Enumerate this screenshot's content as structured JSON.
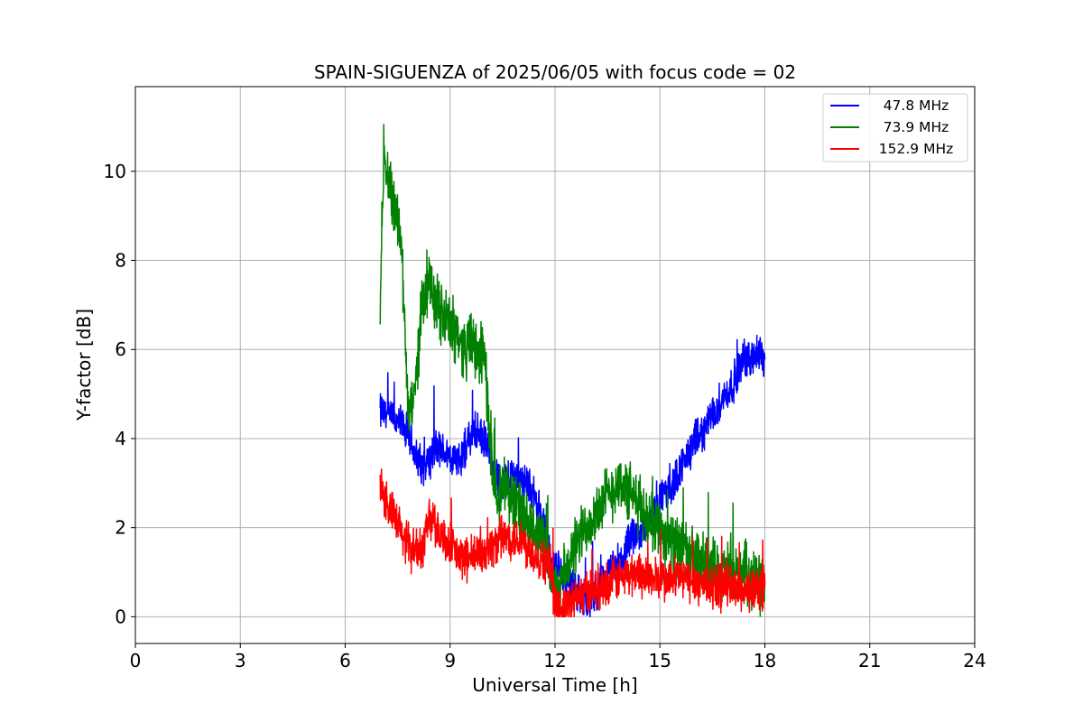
{
  "chart_data": {
    "type": "line",
    "title": "SPAIN-SIGUENZA of 2025/06/05 with focus code = 02",
    "xlabel": "Universal Time [h]",
    "ylabel": "Y-factor [dB]",
    "xlim": [
      0,
      24
    ],
    "ylim": [
      -0.6,
      11.9
    ],
    "xticks": [
      0,
      3,
      6,
      9,
      12,
      15,
      18,
      21,
      24
    ],
    "yticks": [
      0,
      2,
      4,
      6,
      8,
      10
    ],
    "grid": true,
    "legend_position": "top-right",
    "series": [
      {
        "name": "47.8 MHz",
        "color": "#0000ff",
        "x": [
          7.0,
          7.2,
          7.4,
          7.6,
          7.8,
          8.0,
          8.2,
          8.4,
          8.6,
          8.8,
          9.0,
          9.2,
          9.4,
          9.6,
          9.8,
          10.0,
          10.2,
          10.4,
          10.6,
          10.8,
          11.0,
          11.2,
          11.4,
          11.6,
          11.8,
          12.0,
          12.2,
          12.4,
          12.6,
          12.8,
          13.0,
          13.2,
          13.4,
          13.6,
          13.8,
          14.0,
          14.2,
          14.4,
          14.6,
          14.8,
          15.0,
          15.2,
          15.4,
          15.6,
          15.8,
          16.0,
          16.2,
          16.4,
          16.6,
          16.8,
          17.0,
          17.2,
          17.4,
          17.6,
          17.8,
          18.0
        ],
        "y": [
          4.6,
          4.5,
          4.4,
          4.3,
          4.1,
          3.6,
          3.4,
          3.5,
          3.8,
          3.7,
          3.6,
          3.5,
          3.7,
          4.1,
          4.1,
          3.9,
          3.5,
          3.0,
          3.1,
          3.2,
          3.1,
          3.0,
          2.7,
          2.3,
          1.5,
          1.1,
          0.9,
          0.8,
          0.5,
          0.5,
          0.4,
          0.5,
          0.8,
          1.0,
          1.2,
          1.4,
          1.8,
          1.9,
          2.1,
          2.2,
          2.6,
          2.8,
          3.0,
          3.4,
          3.6,
          3.9,
          4.1,
          4.4,
          4.7,
          4.9,
          5.1,
          5.4,
          5.8,
          5.8,
          5.9,
          5.8
        ],
        "noise": 0.35
      },
      {
        "name": "73.9 MHz",
        "color": "#008000",
        "x": [
          7.0,
          7.1,
          7.2,
          7.4,
          7.6,
          7.8,
          8.0,
          8.2,
          8.4,
          8.6,
          8.8,
          9.0,
          9.2,
          9.4,
          9.6,
          9.8,
          10.0,
          10.2,
          10.4,
          10.6,
          10.8,
          11.0,
          11.2,
          11.4,
          11.6,
          11.8,
          12.0,
          12.2,
          12.4,
          12.6,
          12.8,
          13.0,
          13.2,
          13.4,
          13.6,
          13.8,
          14.0,
          14.2,
          14.4,
          14.6,
          14.8,
          15.0,
          15.2,
          15.4,
          15.6,
          15.8,
          16.0,
          16.2,
          16.4,
          16.6,
          16.8,
          17.0,
          17.2,
          17.4,
          17.6,
          17.8,
          18.0
        ],
        "y": [
          7.0,
          10.5,
          10.0,
          9.2,
          8.6,
          4.5,
          5.0,
          7.2,
          7.4,
          7.0,
          6.8,
          6.5,
          6.4,
          6.0,
          6.2,
          5.8,
          5.8,
          3.2,
          2.8,
          3.0,
          2.6,
          2.4,
          2.0,
          1.9,
          1.8,
          1.2,
          0.5,
          0.8,
          1.2,
          1.6,
          1.9,
          2.2,
          2.4,
          2.6,
          2.8,
          3.0,
          2.9,
          2.7,
          2.5,
          2.3,
          2.2,
          2.0,
          1.8,
          1.6,
          1.5,
          1.4,
          1.3,
          1.2,
          1.1,
          1.1,
          1.0,
          1.0,
          0.9,
          1.0,
          0.9,
          0.8,
          0.8
        ],
        "noise": 0.55
      },
      {
        "name": "152.9 MHz",
        "color": "#ff0000",
        "x": [
          7.0,
          7.2,
          7.4,
          7.6,
          7.8,
          8.0,
          8.2,
          8.4,
          8.6,
          8.8,
          9.0,
          9.2,
          9.4,
          9.6,
          9.8,
          10.0,
          10.2,
          10.4,
          10.6,
          10.8,
          11.0,
          11.2,
          11.4,
          11.6,
          11.8,
          11.9,
          12.0,
          12.2,
          12.4,
          12.6,
          12.8,
          13.0,
          13.2,
          13.4,
          13.6,
          13.8,
          14.0,
          14.2,
          14.4,
          14.6,
          14.8,
          15.0,
          15.2,
          15.4,
          15.6,
          15.8,
          16.0,
          16.2,
          16.4,
          16.6,
          16.8,
          17.0,
          17.2,
          17.4,
          17.6,
          17.8,
          18.0
        ],
        "y": [
          3.0,
          2.5,
          2.2,
          1.9,
          1.6,
          1.5,
          1.5,
          2.3,
          2.0,
          1.8,
          1.6,
          1.4,
          1.3,
          1.3,
          1.4,
          1.5,
          1.6,
          1.7,
          1.8,
          1.8,
          1.7,
          1.6,
          1.4,
          1.3,
          1.2,
          1.0,
          0.15,
          0.2,
          0.3,
          0.4,
          0.5,
          0.6,
          0.65,
          0.7,
          0.8,
          0.85,
          0.9,
          0.95,
          1.0,
          0.9,
          0.85,
          0.85,
          0.8,
          0.85,
          0.9,
          0.8,
          0.8,
          0.75,
          0.7,
          0.7,
          0.65,
          0.7,
          0.65,
          0.6,
          0.6,
          0.65,
          0.7
        ],
        "noise": 0.4
      }
    ]
  }
}
